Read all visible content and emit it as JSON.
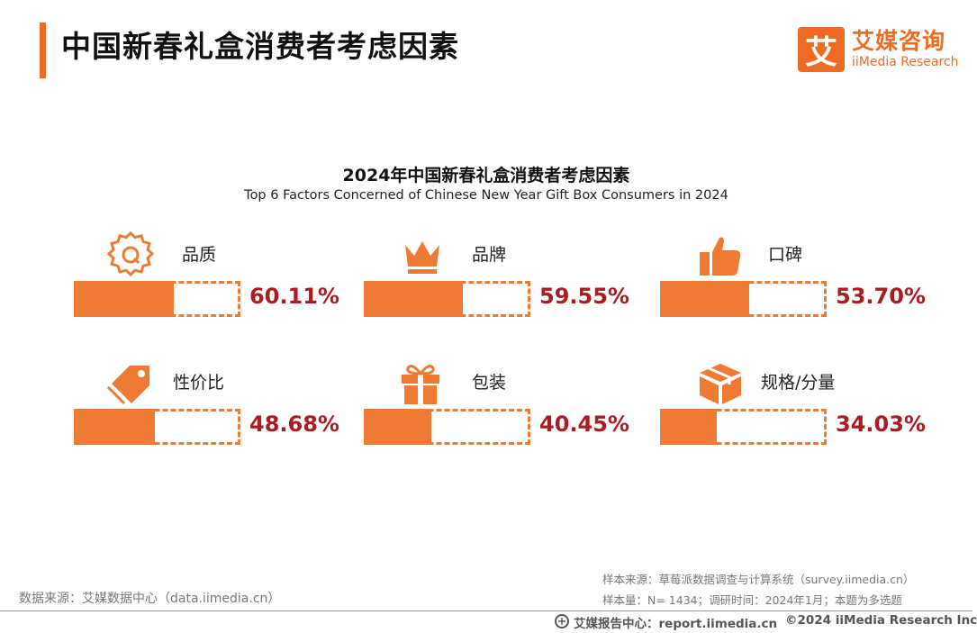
{
  "header": {
    "title": "中国新春礼盒消费者考虑因素"
  },
  "logo": {
    "mark_char": "艾",
    "name_cn": "艾媒咨询",
    "name_en": "iiMedia Research"
  },
  "chart_data": {
    "type": "bar",
    "title": "2024年中国新春礼盒消费者考虑因素",
    "subtitle": "Top 6 Factors Concerned of Chinese New Year Gift Box Consumers in 2024",
    "categories": [
      "品质",
      "品牌",
      "口碑",
      "性价比",
      "包装",
      "规格/分量"
    ],
    "values": [
      60.11,
      59.55,
      53.7,
      48.68,
      40.45,
      34.03
    ],
    "value_labels": [
      "60.11%",
      "59.55%",
      "53.70%",
      "48.68%",
      "40.45%",
      "34.03%"
    ],
    "icons": [
      "quality-badge-icon",
      "crown-icon",
      "thumbs-up-icon",
      "price-tag-icon",
      "gift-box-icon",
      "package-box-icon"
    ],
    "unit": "%",
    "ylim": [
      0,
      100
    ],
    "bar_color": "#ee7a33",
    "value_color": "#a81c22"
  },
  "sources": {
    "data_source": "数据来源：艾媒数据中心（data.iimedia.cn）",
    "sample_source": "样本来源：草莓派数据调查与计算系统（survey.iimedia.cn）",
    "sample_size": "样本量：N= 1434；调研时间：2024年1月；本题为多选题"
  },
  "footer": {
    "report_center": "艾媒报告中心：report.iimedia.cn",
    "copyright": "©2024  iiMedia Research  Inc"
  },
  "colors": {
    "accent": "#ee6c22",
    "bar": "#ee7a33",
    "value_text": "#a81c22"
  }
}
